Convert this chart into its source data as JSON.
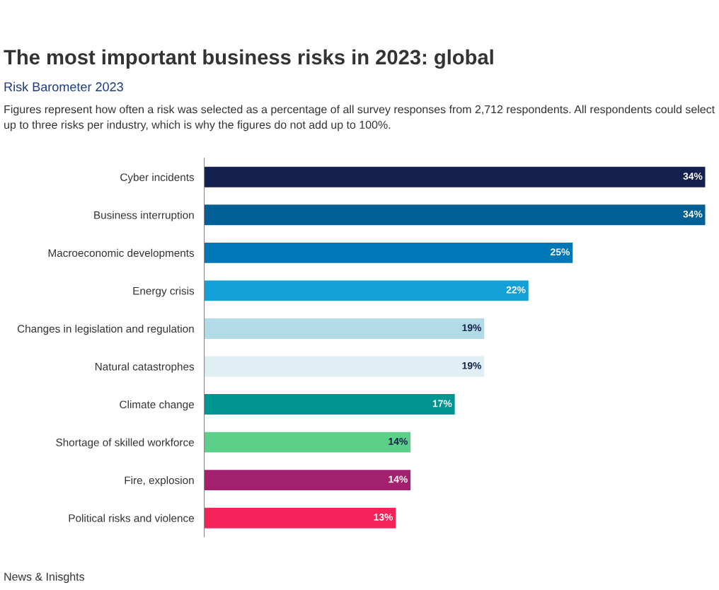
{
  "chart_data": {
    "type": "bar",
    "orientation": "horizontal",
    "title": "The most important business risks in 2023: global",
    "subtitle": "Risk Barometer 2023",
    "annotations": [
      "Figures represent how often a risk was selected as a percentage of all survey responses from 2,712 respondents. All respondents could select up to three risks per industry, which is why the figures do not add up to 100%.",
      "News & Inisghts"
    ],
    "categories": [
      "Cyber incidents",
      "Business interruption",
      "Macroeconomic developments",
      "Energy crisis",
      "Changes in legislation and regulation",
      "Natural catastrophes",
      "Climate change",
      "Shortage of skilled workforce",
      "Fire, explosion",
      "Political risks and violence"
    ],
    "values": [
      34,
      34,
      25,
      22,
      19,
      19,
      17,
      14,
      14,
      13
    ],
    "value_labels": [
      "34%",
      "34%",
      "25%",
      "22%",
      "19%",
      "19%",
      "17%",
      "14%",
      "14%",
      "13%"
    ],
    "colors": [
      "#14214f",
      "#005f94",
      "#0078b8",
      "#12a0d7",
      "#b3dbe7",
      "#e0eff3",
      "#009590",
      "#5ccf88",
      "#a3206f",
      "#f5225a"
    ],
    "grid": false,
    "legend": false
  }
}
